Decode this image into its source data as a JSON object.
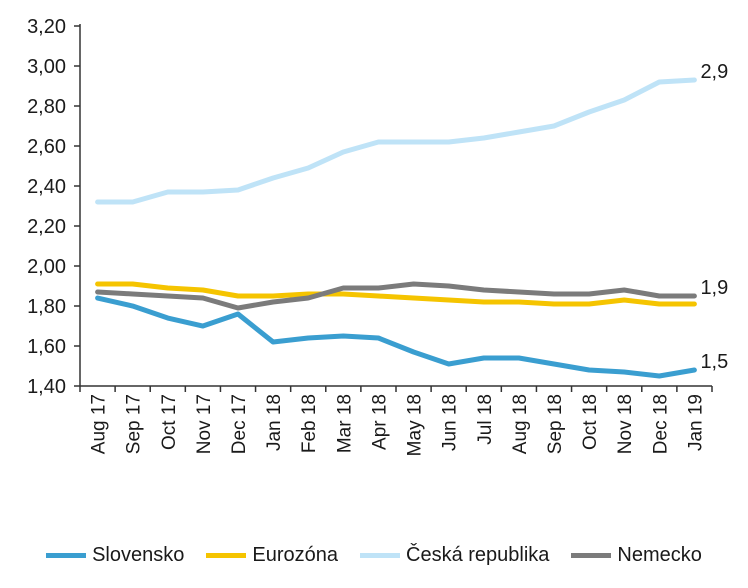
{
  "chart_data": {
    "type": "line",
    "categories": [
      "Aug 17",
      "Sep 17",
      "Oct 17",
      "Nov 17",
      "Dec 17",
      "Jan 18",
      "Feb 18",
      "Mar 18",
      "Apr 18",
      "May 18",
      "Jun 18",
      "Jul 18",
      "Aug 18",
      "Sep 18",
      "Oct 18",
      "Nov 18",
      "Dec 18",
      "Jan 19"
    ],
    "ylim": [
      1.4,
      3.2
    ],
    "yticks": [
      "1,40",
      "1,60",
      "1,80",
      "2,00",
      "2,20",
      "2,40",
      "2,60",
      "2,80",
      "3,00",
      "3,20"
    ],
    "grid": false,
    "legend_position": "bottom",
    "series": [
      {
        "name": "Slovensko",
        "color": "#3a9ed0",
        "values": [
          1.84,
          1.8,
          1.74,
          1.7,
          1.76,
          1.62,
          1.64,
          1.65,
          1.64,
          1.57,
          1.51,
          1.54,
          1.54,
          1.51,
          1.48,
          1.47,
          1.45,
          1.48
        ]
      },
      {
        "name": "Eurozóna",
        "color": "#f5c400",
        "values": [
          1.91,
          1.91,
          1.89,
          1.88,
          1.85,
          1.85,
          1.86,
          1.86,
          1.85,
          1.84,
          1.83,
          1.82,
          1.82,
          1.81,
          1.81,
          1.83,
          1.81,
          1.81
        ]
      },
      {
        "name": "Česká republika",
        "color": "#bfe3f7",
        "values": [
          2.32,
          2.32,
          2.37,
          2.37,
          2.38,
          2.44,
          2.49,
          2.57,
          2.62,
          2.62,
          2.62,
          2.64,
          2.67,
          2.7,
          2.77,
          2.83,
          2.92,
          2.93
        ]
      },
      {
        "name": "Nemecko",
        "color": "#7b7b7b",
        "values": [
          1.87,
          1.86,
          1.85,
          1.84,
          1.79,
          1.82,
          1.84,
          1.89,
          1.89,
          1.91,
          1.9,
          1.88,
          1.87,
          1.86,
          1.86,
          1.88,
          1.85,
          1.85
        ]
      }
    ],
    "end_labels": [
      {
        "series": "Česká republika",
        "text": "2,9"
      },
      {
        "series": "Nemecko",
        "text": "1,9"
      },
      {
        "series": "Slovensko",
        "text": "1,5"
      }
    ]
  }
}
